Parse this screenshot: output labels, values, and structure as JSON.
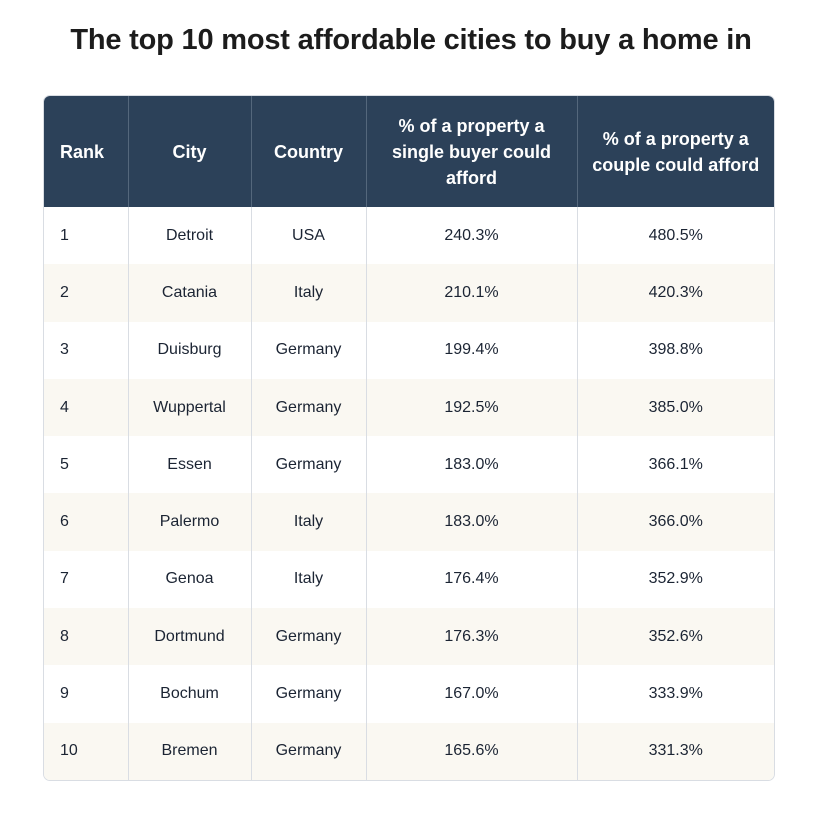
{
  "title": "The top 10 most affordable cities to buy a home in",
  "table": {
    "headers": [
      "Rank",
      "City",
      "Country",
      "% of a property a single buyer could afford",
      "% of a property a couple could afford"
    ],
    "rows": [
      [
        "1",
        "Detroit",
        "USA",
        "240.3%",
        "480.5%"
      ],
      [
        "2",
        "Catania",
        "Italy",
        "210.1%",
        "420.3%"
      ],
      [
        "3",
        "Duisburg",
        "Germany",
        "199.4%",
        "398.8%"
      ],
      [
        "4",
        "Wuppertal",
        "Germany",
        "192.5%",
        "385.0%"
      ],
      [
        "5",
        "Essen",
        "Germany",
        "183.0%",
        "366.1%"
      ],
      [
        "6",
        "Palermo",
        "Italy",
        "183.0%",
        "366.0%"
      ],
      [
        "7",
        "Genoa",
        "Italy",
        "176.4%",
        "352.9%"
      ],
      [
        "8",
        "Dortmund",
        "Germany",
        "176.3%",
        "352.6%"
      ],
      [
        "9",
        "Bochum",
        "Germany",
        "167.0%",
        "333.9%"
      ],
      [
        "10",
        "Bremen",
        "Germany",
        "165.6%",
        "331.3%"
      ]
    ]
  },
  "colors": {
    "header_bg": "#2c4159",
    "alt_row_bg": "#faf8f2",
    "text": "#1b2433"
  }
}
